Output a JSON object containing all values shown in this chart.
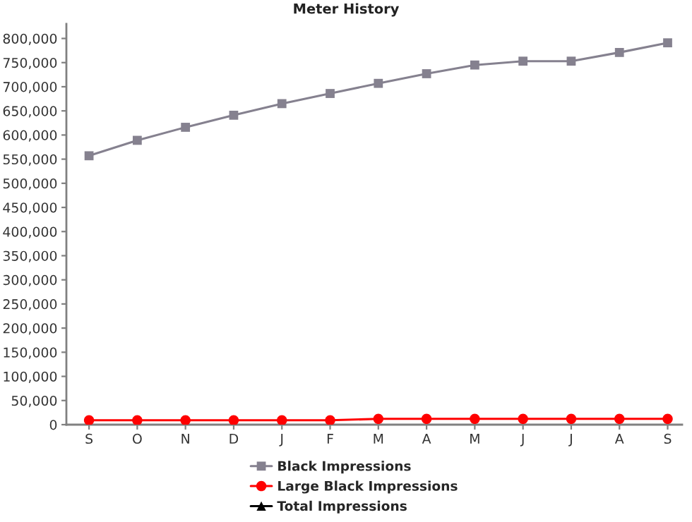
{
  "chart_data": {
    "type": "line",
    "title": "Meter History",
    "categories": [
      "S",
      "O",
      "N",
      "D",
      "J",
      "F",
      "M",
      "A",
      "M",
      "J",
      "J",
      "A",
      "S"
    ],
    "series": [
      {
        "name": "Black Impressions",
        "color": "#85818f",
        "marker": "square",
        "values": [
          557000,
          589000,
          616000,
          641000,
          665000,
          686000,
          707000,
          727000,
          745000,
          753000,
          753000,
          771000,
          791000
        ]
      },
      {
        "name": "Large Black Impressions",
        "color": "#ff0000",
        "marker": "circle",
        "values": [
          9000,
          9000,
          9000,
          9000,
          9000,
          9000,
          12000,
          12000,
          12000,
          12000,
          12000,
          12000,
          12000
        ]
      },
      {
        "name": "Total Impressions",
        "color": "#000000",
        "marker": "triangle",
        "values": [
          null,
          null,
          null,
          null,
          null,
          null,
          null,
          null,
          null,
          null,
          null,
          null,
          null
        ]
      }
    ],
    "ylim": [
      0,
      830000
    ],
    "yticks": [
      {
        "value": 0,
        "label": "0"
      },
      {
        "value": 50000,
        "label": "50,000"
      },
      {
        "value": 100000,
        "label": "100,000"
      },
      {
        "value": 150000,
        "label": "150,000"
      },
      {
        "value": 200000,
        "label": "200,000"
      },
      {
        "value": 250000,
        "label": "250,000"
      },
      {
        "value": 300000,
        "label": "300,000"
      },
      {
        "value": 350000,
        "label": "350,000"
      },
      {
        "value": 400000,
        "label": "400,000"
      },
      {
        "value": 450000,
        "label": "450,000"
      },
      {
        "value": 500000,
        "label": "500,000"
      },
      {
        "value": 550000,
        "label": "550,000"
      },
      {
        "value": 600000,
        "label": "600,000"
      },
      {
        "value": 650000,
        "label": "650,000"
      },
      {
        "value": 700000,
        "label": "700,000"
      },
      {
        "value": 750000,
        "label": "750,000"
      },
      {
        "value": 800000,
        "label": "800,000"
      }
    ],
    "grid": false,
    "legend": "bottom",
    "line_style": "solid"
  }
}
